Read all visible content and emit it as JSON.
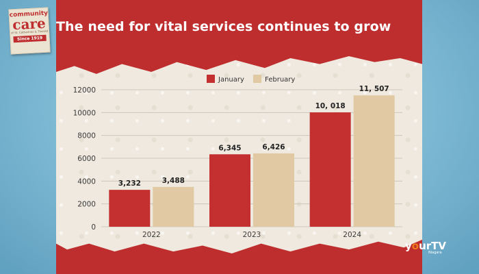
{
  "brand": {
    "logo_line1": "community",
    "logo_line2": "care",
    "logo_line3": "of St. Catharines & Thorold",
    "logo_line4": "Since 1919"
  },
  "watermark": {
    "name_pre": "y",
    "name_o": "o",
    "name_post": "urTV",
    "sub": "Niagara"
  },
  "colors": {
    "january": "#c42f2f",
    "february": "#e1c9a3",
    "frame": "#bf2e2e",
    "background": "#7db9d3"
  },
  "chart_data": {
    "type": "bar",
    "title": "The need for vital services continues to grow",
    "categories": [
      "2022",
      "2023",
      "2024"
    ],
    "series": [
      {
        "name": "January",
        "values": [
          3232,
          6345,
          10018
        ],
        "labels": [
          "3,232",
          "6,345",
          "10, 018"
        ]
      },
      {
        "name": "February",
        "values": [
          3488,
          6426,
          11507
        ],
        "labels": [
          "3,488",
          "6,426",
          "11, 507"
        ]
      }
    ],
    "ylim": [
      0,
      12000
    ],
    "yticks": [
      "0",
      "2000",
      "4000",
      "6000",
      "8000",
      "10000",
      "12000"
    ],
    "grid": true,
    "legend": "top-left"
  }
}
